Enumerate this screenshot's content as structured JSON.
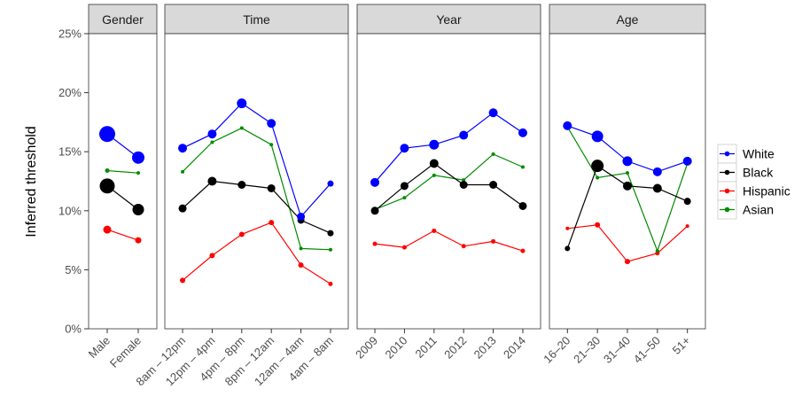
{
  "chart_data": {
    "type": "line",
    "ylabel": "Inferred threshold",
    "ylim": [
      0,
      25
    ],
    "yticks": [
      "0%",
      "5%",
      "10%",
      "15%",
      "20%",
      "25%"
    ],
    "yticks_values": [
      0,
      5,
      10,
      15,
      20,
      25
    ],
    "grid": false,
    "legend_position": "right",
    "series_names": [
      "White",
      "Black",
      "Hispanic",
      "Asian"
    ],
    "series_colors": [
      "#0000ff",
      "#000000",
      "#ff0000",
      "#008b00"
    ],
    "panels": [
      {
        "title": "Gender",
        "categories": [
          "Male",
          "Female"
        ],
        "series": [
          {
            "name": "White",
            "values": [
              16.5,
              14.5
            ]
          },
          {
            "name": "Black",
            "values": [
              12.1,
              10.1
            ]
          },
          {
            "name": "Hispanic",
            "values": [
              8.4,
              7.5
            ]
          },
          {
            "name": "Asian",
            "values": [
              13.4,
              13.2
            ]
          }
        ]
      },
      {
        "title": "Time",
        "categories": [
          "8am – 12pm",
          "12pm – 4pm",
          "4pm – 8pm",
          "8pm – 12am",
          "12am – 4am",
          "4am – 8am"
        ],
        "series": [
          {
            "name": "White",
            "values": [
              15.3,
              16.5,
              19.1,
              17.4,
              9.5,
              12.3
            ]
          },
          {
            "name": "Black",
            "values": [
              10.2,
              12.5,
              12.2,
              11.9,
              9.2,
              8.1
            ]
          },
          {
            "name": "Hispanic",
            "values": [
              4.1,
              6.2,
              8.0,
              9.0,
              5.4,
              3.8
            ]
          },
          {
            "name": "Asian",
            "values": [
              13.3,
              15.8,
              17.0,
              15.6,
              6.8,
              6.7
            ]
          }
        ]
      },
      {
        "title": "Year",
        "categories": [
          "2009",
          "2010",
          "2011",
          "2012",
          "2013",
          "2014"
        ],
        "series": [
          {
            "name": "White",
            "values": [
              12.4,
              15.3,
              15.6,
              16.4,
              18.3,
              16.6
            ]
          },
          {
            "name": "Black",
            "values": [
              10.0,
              12.1,
              14.0,
              12.2,
              12.2,
              10.4
            ]
          },
          {
            "name": "Hispanic",
            "values": [
              7.2,
              6.9,
              8.3,
              7.0,
              7.4,
              6.6
            ]
          },
          {
            "name": "Asian",
            "values": [
              10.1,
              11.1,
              13.0,
              12.6,
              14.8,
              13.7
            ]
          }
        ]
      },
      {
        "title": "Age",
        "categories": [
          "16–20",
          "21–30",
          "31–40",
          "41–50",
          "51+"
        ],
        "series": [
          {
            "name": "White",
            "values": [
              17.2,
              16.3,
              14.2,
              13.3,
              14.2
            ]
          },
          {
            "name": "Black",
            "values": [
              6.8,
              13.8,
              12.1,
              11.9,
              10.8
            ]
          },
          {
            "name": "Hispanic",
            "values": [
              8.5,
              8.8,
              5.7,
              6.4,
              8.7
            ]
          },
          {
            "name": "Asian",
            "values": [
              17.1,
              12.8,
              13.2,
              6.6,
              14.0
            ]
          }
        ]
      }
    ],
    "point_sizes": {
      "Gender": {
        "White": [
          9,
          7
        ],
        "Black": [
          8.5,
          6.5
        ],
        "Hispanic": [
          4.5,
          3.5
        ],
        "Asian": [
          2.5,
          2
        ]
      },
      "Time": {
        "White": [
          5,
          5,
          5.5,
          5,
          4.5,
          3.5
        ],
        "Black": [
          4.5,
          5,
          4.5,
          4.5,
          4,
          3.5
        ],
        "Hispanic": [
          3,
          3,
          3,
          3,
          3,
          2.5
        ],
        "Asian": [
          2,
          2,
          2,
          2,
          2,
          2
        ]
      },
      "Year": {
        "White": [
          5,
          5,
          5.5,
          5,
          5,
          5
        ],
        "Black": [
          4.5,
          4.5,
          5,
          4.5,
          4.5,
          4.5
        ],
        "Hispanic": [
          2.5,
          2.5,
          2.5,
          2.5,
          2.5,
          2.5
        ],
        "Asian": [
          2,
          2,
          2,
          2,
          2,
          2
        ]
      },
      "Age": {
        "White": [
          5,
          6.5,
          5.5,
          5,
          5
        ],
        "Black": [
          3,
          7,
          5,
          5,
          4
        ],
        "Hispanic": [
          2,
          3,
          3,
          2.5,
          2
        ],
        "Asian": [
          2,
          2,
          2,
          2,
          2
        ]
      }
    }
  }
}
